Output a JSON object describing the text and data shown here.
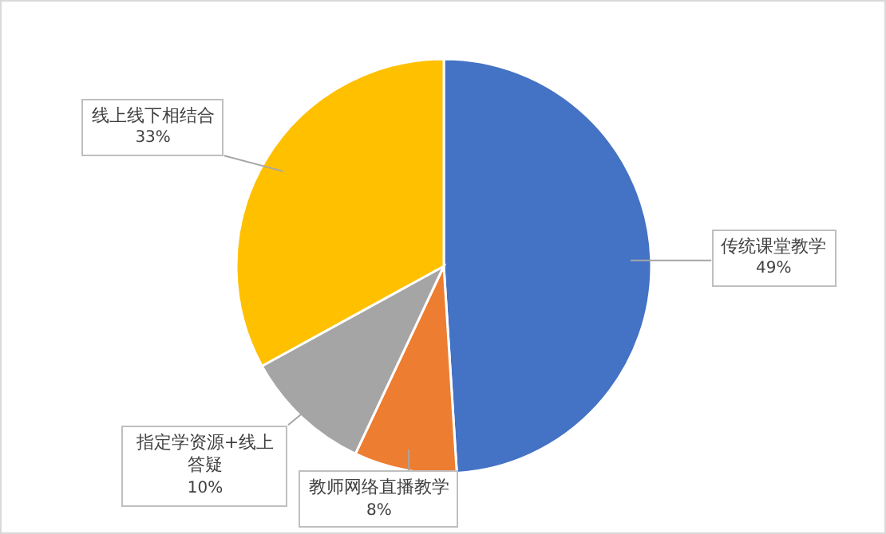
{
  "chart_data": {
    "type": "pie",
    "categories": [
      "传统课堂教学",
      "教师网络直播教学",
      "指定学资源+线上答疑",
      "线上线下相结合"
    ],
    "values": [
      49,
      8,
      10,
      33
    ],
    "value_labels": [
      "49%",
      "8%",
      "10%",
      "33%"
    ],
    "colors": [
      "#4472c4",
      "#ed7d31",
      "#a5a5a5",
      "#ffc000"
    ]
  }
}
